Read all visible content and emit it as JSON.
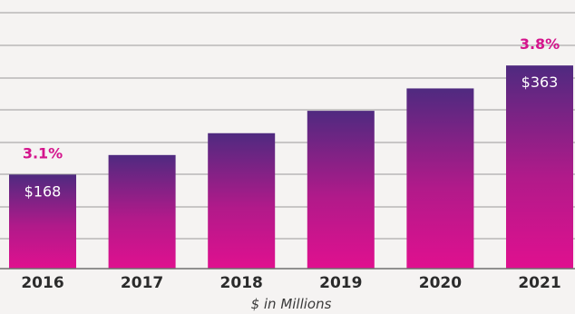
{
  "chart_data": {
    "type": "bar",
    "title": "",
    "xlabel": "$ in Millions",
    "ylabel": "",
    "categories": [
      "2016",
      "2017",
      "2018",
      "2019",
      "2020",
      "2021"
    ],
    "values": [
      168,
      203,
      242,
      282,
      322,
      363
    ],
    "value_labels": [
      "$168",
      "",
      "",
      "",
      "",
      "$363"
    ],
    "percent_labels": [
      "3.1%",
      "",
      "",
      "",
      "",
      "3.8%"
    ],
    "ylim": [
      0,
      480
    ],
    "grid": true,
    "colors": {
      "bar_top": "#4f2a80",
      "bar_bottom": "#e0108f",
      "percent_text": "#d4148c",
      "background": "#f5f3f2"
    }
  }
}
